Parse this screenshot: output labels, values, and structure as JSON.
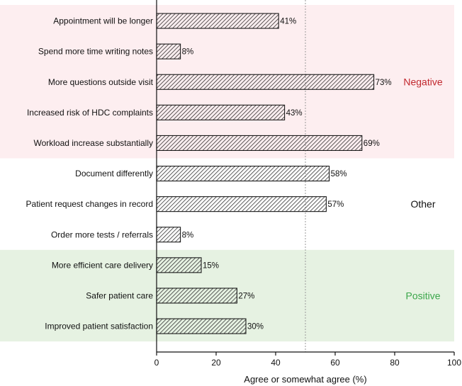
{
  "chart_data": {
    "type": "bar",
    "orientation": "horizontal",
    "categories": [
      "Appointment will be longer",
      "Spend more time writing notes",
      "More questions outside visit",
      "Increased risk of HDC complaints",
      "Workload increase substantially",
      "Document differently",
      "Patient request changes in record",
      "Order more tests / referrals",
      "More efficient care delivery",
      "Safer patient care",
      "Improved patient satisfaction"
    ],
    "values": [
      41,
      8,
      73,
      43,
      69,
      58,
      57,
      8,
      15,
      27,
      30
    ],
    "value_labels": [
      "41%",
      "8%",
      "73%",
      "43%",
      "69%",
      "58%",
      "57%",
      "8%",
      "15%",
      "27%",
      "30%"
    ],
    "xlabel": "Agree or somewhat agree (%)",
    "ylabel": "",
    "xlim": [
      0,
      100
    ],
    "xticks": [
      0,
      20,
      40,
      60,
      80,
      100
    ],
    "reference_line": 50,
    "grid": false,
    "bar_style": "diagonal hatch",
    "groups": [
      {
        "label": "Negative",
        "first": 0,
        "last": 4,
        "bg_color": "#fdeef0",
        "label_color": "#c1272d",
        "shaded": true
      },
      {
        "label": "Other",
        "first": 5,
        "last": 7,
        "bg_color": "#ffffff",
        "label_color": "#111111",
        "shaded": false
      },
      {
        "label": "Positive",
        "first": 8,
        "last": 10,
        "bg_color": "#e6f2e2",
        "label_color": "#3aa64a",
        "shaded": true
      }
    ]
  }
}
